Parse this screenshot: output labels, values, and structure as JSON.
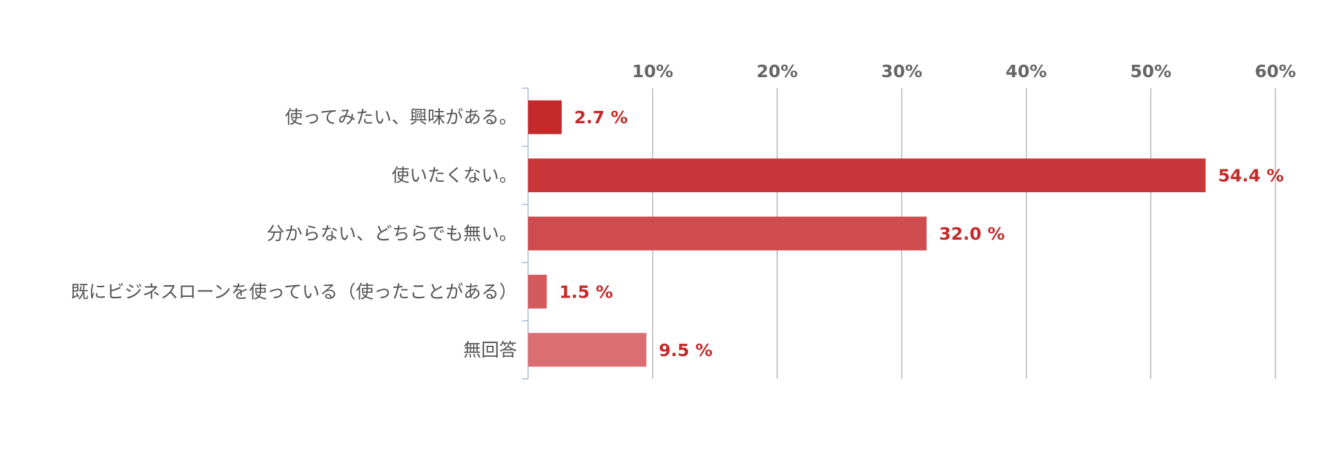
{
  "chart_data": {
    "type": "bar",
    "orientation": "horizontal",
    "categories": [
      "使ってみたい、興味がある。",
      "使いたくない。",
      "分からない、どちらでも無い。",
      "既にビジネスローンを使っている（使ったことがある）",
      "無回答"
    ],
    "values": [
      2.7,
      54.4,
      32.0,
      1.5,
      9.5
    ],
    "value_labels": [
      "2.7 %",
      "54.4 %",
      "32.0 %",
      "1.5 %",
      "9.5 %"
    ],
    "bar_colors": [
      "#c52a2a",
      "#c9373a",
      "#cf4c4e",
      "#d45a5d",
      "#da6e72"
    ],
    "label_color": "#c52a2a",
    "xlim": [
      0,
      60
    ],
    "x_ticks": [
      10,
      20,
      30,
      40,
      50,
      60
    ],
    "x_tick_labels": [
      "10%",
      "20%",
      "30%",
      "40%",
      "50%",
      "60%"
    ],
    "x_axis_position": "top",
    "grid": true,
    "title": "",
    "xlabel": "",
    "ylabel": ""
  }
}
